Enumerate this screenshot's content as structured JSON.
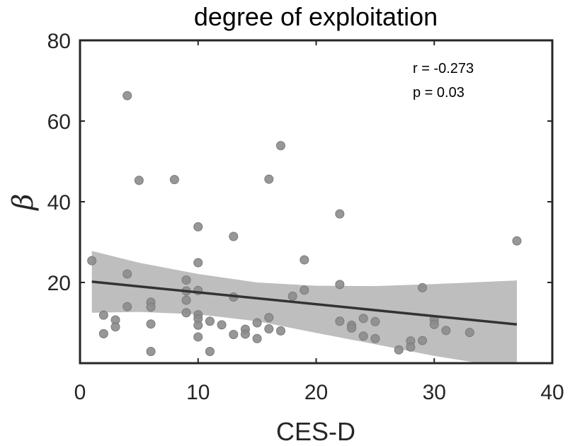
{
  "chart_data": {
    "type": "scatter",
    "title": "degree of exploitation",
    "xlabel": "CES-D",
    "ylabel": "β",
    "xlim": [
      0,
      40
    ],
    "ylim": [
      0,
      80
    ],
    "xticks": [
      "0",
      "10",
      "20",
      "30",
      "40"
    ],
    "yticks": [
      "20",
      "40",
      "60",
      "80"
    ],
    "grid": false,
    "annotations": [
      "r = -0.273",
      "p = 0.03"
    ],
    "colors": {
      "points": "#8c8c8c",
      "fit_line": "#333333",
      "band": "#bebebe"
    },
    "points": [
      {
        "x": 1,
        "y": 25.4
      },
      {
        "x": 2,
        "y": 11.9
      },
      {
        "x": 2,
        "y": 7.3
      },
      {
        "x": 3,
        "y": 10.7
      },
      {
        "x": 3,
        "y": 9.0
      },
      {
        "x": 4,
        "y": 66.3
      },
      {
        "x": 4,
        "y": 22.1
      },
      {
        "x": 4,
        "y": 14.0
      },
      {
        "x": 5,
        "y": 45.3
      },
      {
        "x": 6,
        "y": 15.1
      },
      {
        "x": 6,
        "y": 13.9
      },
      {
        "x": 6,
        "y": 9.7
      },
      {
        "x": 6,
        "y": 2.9
      },
      {
        "x": 8,
        "y": 45.5
      },
      {
        "x": 9,
        "y": 20.6
      },
      {
        "x": 9,
        "y": 17.9
      },
      {
        "x": 9,
        "y": 15.6
      },
      {
        "x": 9,
        "y": 12.5
      },
      {
        "x": 10,
        "y": 33.8
      },
      {
        "x": 10,
        "y": 24.9
      },
      {
        "x": 10,
        "y": 18.0
      },
      {
        "x": 10,
        "y": 12.0
      },
      {
        "x": 10,
        "y": 11.0
      },
      {
        "x": 10,
        "y": 9.4
      },
      {
        "x": 10,
        "y": 6.5
      },
      {
        "x": 11,
        "y": 10.4
      },
      {
        "x": 11,
        "y": 2.9
      },
      {
        "x": 12,
        "y": 9.5
      },
      {
        "x": 13,
        "y": 31.4
      },
      {
        "x": 13,
        "y": 16.4
      },
      {
        "x": 13,
        "y": 7.1
      },
      {
        "x": 14,
        "y": 8.4
      },
      {
        "x": 14,
        "y": 7.2
      },
      {
        "x": 15,
        "y": 10.0
      },
      {
        "x": 15,
        "y": 6.1
      },
      {
        "x": 16,
        "y": 45.6
      },
      {
        "x": 16,
        "y": 11.3
      },
      {
        "x": 16,
        "y": 8.5
      },
      {
        "x": 17,
        "y": 53.9
      },
      {
        "x": 17,
        "y": 8.0
      },
      {
        "x": 18,
        "y": 16.6
      },
      {
        "x": 19,
        "y": 25.6
      },
      {
        "x": 19,
        "y": 18.1
      },
      {
        "x": 22,
        "y": 37.0
      },
      {
        "x": 22,
        "y": 19.5
      },
      {
        "x": 22,
        "y": 10.4
      },
      {
        "x": 23,
        "y": 9.4
      },
      {
        "x": 23,
        "y": 8.7
      },
      {
        "x": 24,
        "y": 11.1
      },
      {
        "x": 24,
        "y": 6.7
      },
      {
        "x": 25,
        "y": 10.3
      },
      {
        "x": 25,
        "y": 6.1
      },
      {
        "x": 27,
        "y": 3.3
      },
      {
        "x": 28,
        "y": 5.5
      },
      {
        "x": 28,
        "y": 4.0
      },
      {
        "x": 29,
        "y": 18.7
      },
      {
        "x": 29,
        "y": 5.6
      },
      {
        "x": 30,
        "y": 10.8
      },
      {
        "x": 30,
        "y": 9.6
      },
      {
        "x": 31,
        "y": 8.1
      },
      {
        "x": 33,
        "y": 7.6
      },
      {
        "x": 37,
        "y": 30.3
      }
    ],
    "fit_line": {
      "x": [
        1,
        37
      ],
      "y": [
        20.2,
        9.6
      ]
    },
    "confidence_band": {
      "x": [
        1,
        5,
        10,
        15,
        20,
        25,
        30,
        37
      ],
      "upper": [
        27.8,
        24.9,
        22.1,
        20.0,
        19.2,
        19.1,
        19.6,
        20.5
      ],
      "lower": [
        12.5,
        12.7,
        12.1,
        10.4,
        7.5,
        4.7,
        1.8,
        -1.5
      ]
    }
  }
}
